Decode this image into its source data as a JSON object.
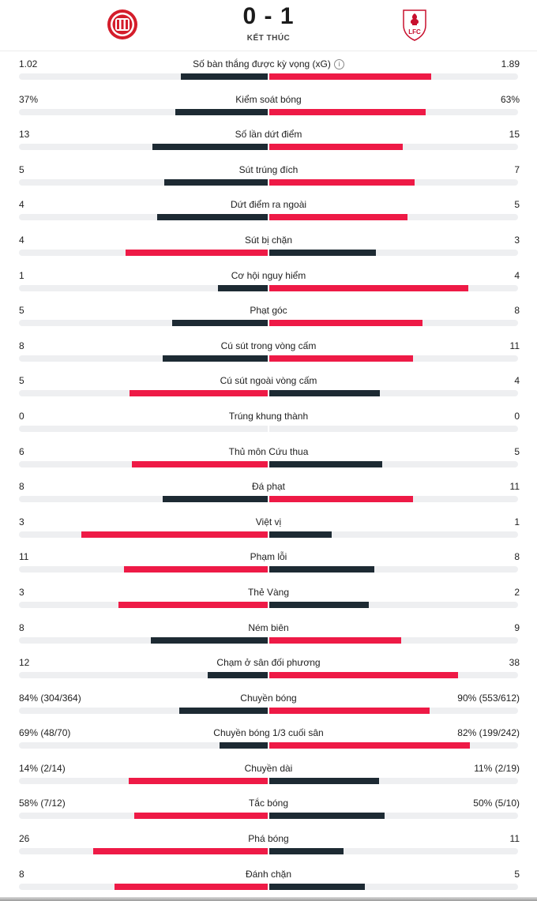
{
  "match": {
    "score": "0 - 1",
    "status": "KẾT THÚC",
    "home_crest_icon": "girona-crest-icon",
    "away_crest_icon": "liverpool-crest-icon",
    "away_crest_text": "LFC"
  },
  "colors": {
    "winner": "#ee1a46",
    "other": "#1d2a33",
    "track": "#eeeff1"
  },
  "stats": [
    {
      "label": "Số bàn thắng được kỳ vọng (xG)",
      "home": "1.02",
      "away": "1.89",
      "home_val": 1.02,
      "away_val": 1.89,
      "info": true
    },
    {
      "label": "Kiểm soát bóng",
      "home": "37%",
      "away": "63%",
      "home_val": 37,
      "away_val": 63
    },
    {
      "label": "Số lần dứt điểm",
      "home": "13",
      "away": "15",
      "home_val": 13,
      "away_val": 15
    },
    {
      "label": "Sút trúng đích",
      "home": "5",
      "away": "7",
      "home_val": 5,
      "away_val": 7
    },
    {
      "label": "Dứt điểm ra ngoài",
      "home": "4",
      "away": "5",
      "home_val": 4,
      "away_val": 5
    },
    {
      "label": "Sút bị chặn",
      "home": "4",
      "away": "3",
      "home_val": 4,
      "away_val": 3
    },
    {
      "label": "Cơ hội nguy hiểm",
      "home": "1",
      "away": "4",
      "home_val": 1,
      "away_val": 4
    },
    {
      "label": "Phạt góc",
      "home": "5",
      "away": "8",
      "home_val": 5,
      "away_val": 8
    },
    {
      "label": "Cú sút trong vòng cấm",
      "home": "8",
      "away": "11",
      "home_val": 8,
      "away_val": 11
    },
    {
      "label": "Cú sút ngoài vòng cấm",
      "home": "5",
      "away": "4",
      "home_val": 5,
      "away_val": 4
    },
    {
      "label": "Trúng khung thành",
      "home": "0",
      "away": "0",
      "home_val": 0,
      "away_val": 0
    },
    {
      "label": "Thủ môn Cứu thua",
      "home": "6",
      "away": "5",
      "home_val": 6,
      "away_val": 5
    },
    {
      "label": "Đá phạt",
      "home": "8",
      "away": "11",
      "home_val": 8,
      "away_val": 11
    },
    {
      "label": "Việt vị",
      "home": "3",
      "away": "1",
      "home_val": 3,
      "away_val": 1
    },
    {
      "label": "Phạm lỗi",
      "home": "11",
      "away": "8",
      "home_val": 11,
      "away_val": 8
    },
    {
      "label": "Thẻ Vàng",
      "home": "3",
      "away": "2",
      "home_val": 3,
      "away_val": 2
    },
    {
      "label": "Ném biên",
      "home": "8",
      "away": "9",
      "home_val": 8,
      "away_val": 9
    },
    {
      "label": "Chạm ở sân đối phương",
      "home": "12",
      "away": "38",
      "home_val": 12,
      "away_val": 38
    },
    {
      "label": "Chuyền bóng",
      "home": "84% (304/364)",
      "away": "90% (553/612)",
      "home_val": 304,
      "away_val": 553
    },
    {
      "label": "Chuyền bóng 1/3 cuối sân",
      "home": "69% (48/70)",
      "away": "82% (199/242)",
      "home_val": 48,
      "away_val": 199
    },
    {
      "label": "Chuyền dài",
      "home": "14% (2/14)",
      "away": "11% (2/19)",
      "home_val": 14,
      "away_val": 11
    },
    {
      "label": "Tắc bóng",
      "home": "58% (7/12)",
      "away": "50% (5/10)",
      "home_val": 58,
      "away_val": 50
    },
    {
      "label": "Phá bóng",
      "home": "26",
      "away": "11",
      "home_val": 26,
      "away_val": 11
    },
    {
      "label": "Đánh chặn",
      "home": "8",
      "away": "5",
      "home_val": 8,
      "away_val": 5
    }
  ]
}
